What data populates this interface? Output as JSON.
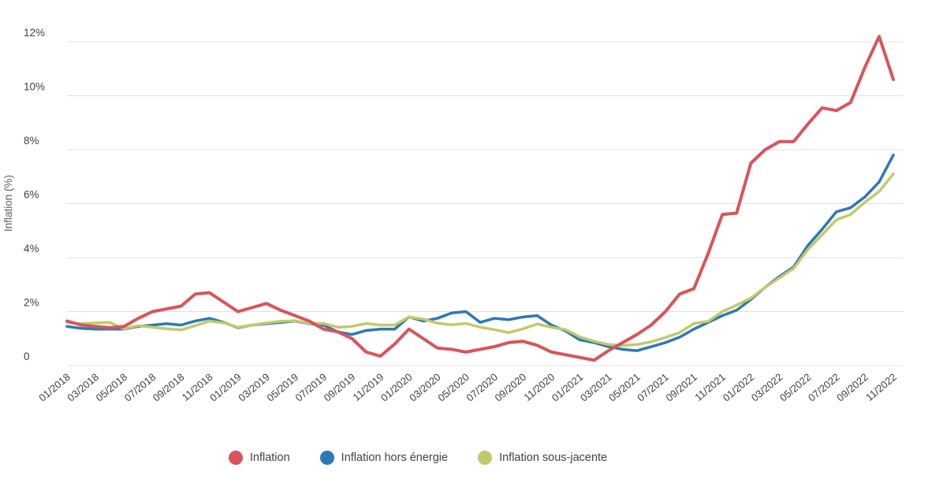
{
  "chart_data": {
    "type": "line",
    "title": "",
    "ylabel": "Inflation (%)",
    "yticks": [
      "0",
      "2%",
      "4%",
      "6%",
      "8%",
      "10%",
      "12%"
    ],
    "ylim": [
      0,
      13
    ],
    "grid": true,
    "legend_position": "bottom",
    "x_label_step": 2,
    "x": [
      "01/2018",
      "02/2018",
      "03/2018",
      "04/2018",
      "05/2018",
      "06/2018",
      "07/2018",
      "08/2018",
      "09/2018",
      "10/2018",
      "11/2018",
      "12/2018",
      "01/2019",
      "02/2019",
      "03/2019",
      "04/2019",
      "05/2019",
      "06/2019",
      "07/2019",
      "08/2019",
      "09/2019",
      "10/2019",
      "11/2019",
      "12/2019",
      "01/2020",
      "02/2020",
      "03/2020",
      "04/2020",
      "05/2020",
      "06/2020",
      "07/2020",
      "08/2020",
      "09/2020",
      "10/2020",
      "11/2020",
      "12/2020",
      "01/2021",
      "02/2021",
      "03/2021",
      "04/2021",
      "05/2021",
      "06/2021",
      "07/2021",
      "08/2021",
      "09/2021",
      "10/2021",
      "11/2021",
      "12/2021",
      "01/2022",
      "02/2022",
      "03/2022",
      "04/2022",
      "05/2022",
      "06/2022",
      "07/2022",
      "08/2022",
      "09/2022",
      "10/2022",
      "11/2022"
    ],
    "series": [
      {
        "name": "Inflation",
        "color": "#d9545a",
        "values": [
          1.65,
          1.5,
          1.45,
          1.4,
          1.45,
          1.75,
          2.0,
          2.1,
          2.2,
          2.65,
          2.7,
          2.35,
          2.0,
          2.15,
          2.3,
          2.05,
          1.85,
          1.65,
          1.35,
          1.25,
          1.0,
          0.5,
          0.35,
          0.8,
          1.35,
          1.0,
          0.65,
          0.6,
          0.5,
          0.6,
          0.7,
          0.85,
          0.9,
          0.75,
          0.5,
          0.4,
          0.3,
          0.2,
          0.55,
          0.85,
          1.15,
          1.5,
          2.0,
          2.65,
          2.85,
          4.15,
          5.6,
          5.65,
          7.5,
          8.0,
          8.3,
          8.3,
          8.95,
          9.55,
          9.45,
          9.75,
          11.05,
          12.2,
          10.6
        ]
      },
      {
        "name": "Inflation hors énergie",
        "color": "#2d79b5",
        "values": [
          1.45,
          1.38,
          1.35,
          1.35,
          1.35,
          1.45,
          1.5,
          1.55,
          1.5,
          1.65,
          1.75,
          1.6,
          1.4,
          1.5,
          1.55,
          1.6,
          1.65,
          1.55,
          1.5,
          1.25,
          1.15,
          1.3,
          1.35,
          1.35,
          1.8,
          1.65,
          1.75,
          1.95,
          2.0,
          1.6,
          1.75,
          1.7,
          1.8,
          1.85,
          1.5,
          1.28,
          0.95,
          0.85,
          0.7,
          0.6,
          0.55,
          0.7,
          0.85,
          1.05,
          1.35,
          1.6,
          1.85,
          2.05,
          2.45,
          2.9,
          3.3,
          3.65,
          4.45,
          5.05,
          5.7,
          5.85,
          6.25,
          6.8,
          7.8
        ]
      },
      {
        "name": "Inflation sous-jacente",
        "color": "#c1ca69",
        "values": [
          1.6,
          1.55,
          1.58,
          1.6,
          1.36,
          1.48,
          1.42,
          1.36,
          1.32,
          1.48,
          1.65,
          1.58,
          1.42,
          1.5,
          1.58,
          1.64,
          1.66,
          1.56,
          1.56,
          1.42,
          1.45,
          1.56,
          1.5,
          1.5,
          1.8,
          1.72,
          1.57,
          1.51,
          1.56,
          1.42,
          1.33,
          1.22,
          1.36,
          1.54,
          1.42,
          1.33,
          1.06,
          0.9,
          0.78,
          0.74,
          0.78,
          0.88,
          1.04,
          1.22,
          1.56,
          1.64,
          2.0,
          2.24,
          2.5,
          2.9,
          3.25,
          3.6,
          4.3,
          4.85,
          5.4,
          5.6,
          6.05,
          6.45,
          7.1
        ]
      }
    ]
  }
}
